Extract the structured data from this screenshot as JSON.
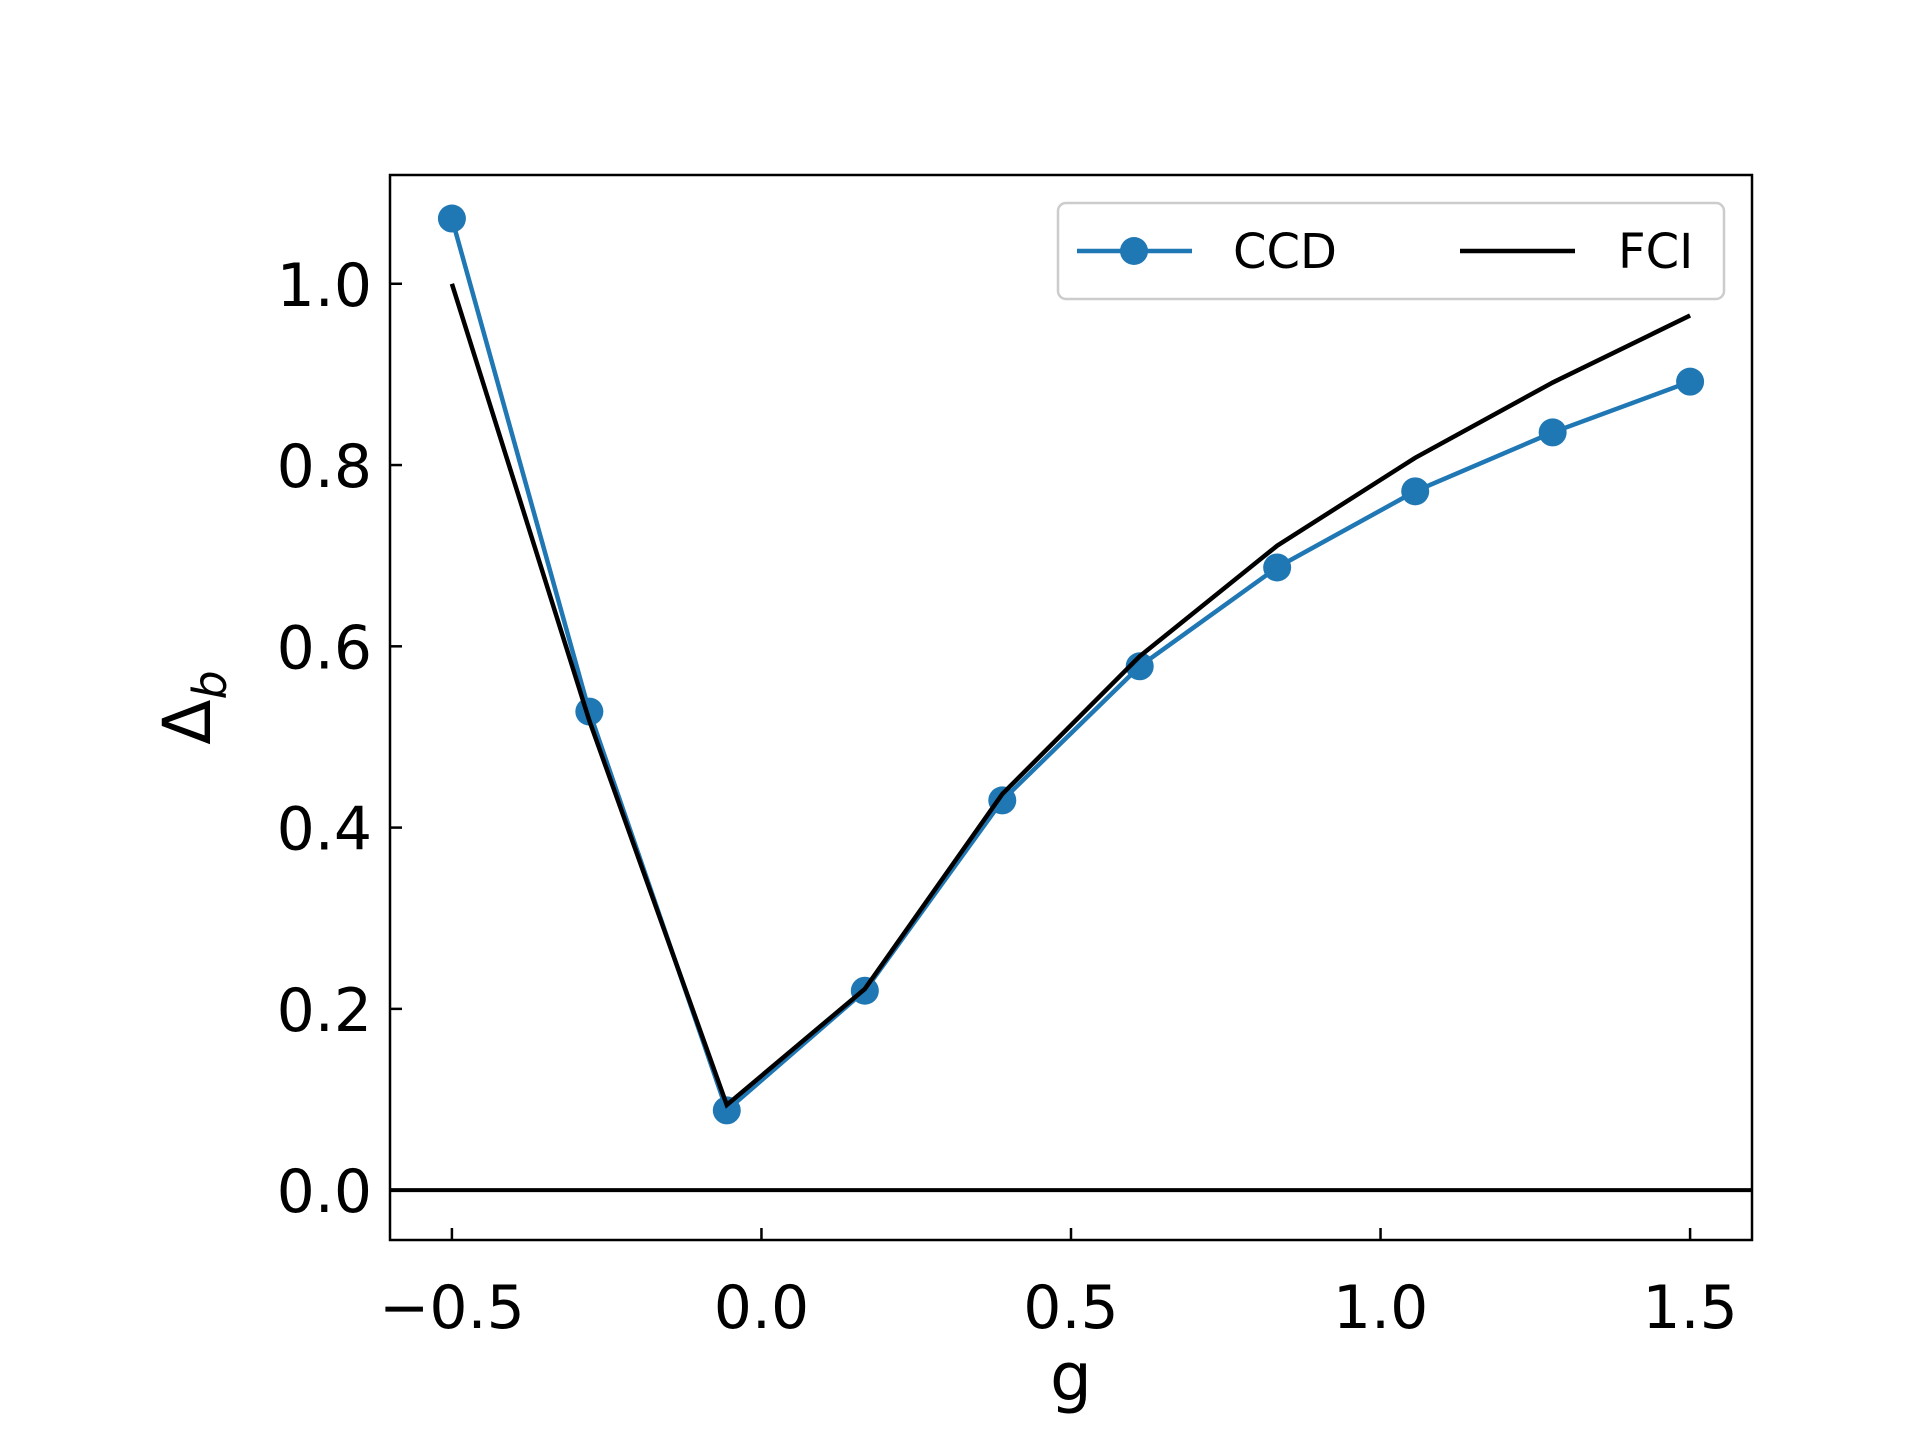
{
  "chart_data": {
    "type": "line",
    "xlabel": "g",
    "ylabel": "Δ",
    "ylabel_subscript": "b",
    "xlim": [
      -0.6,
      1.6
    ],
    "ylim": [
      -0.055,
      1.12
    ],
    "xticks": [
      -0.5,
      0.0,
      0.5,
      1.0,
      1.5
    ],
    "xtick_labels": [
      "−0.5",
      "0.0",
      "0.5",
      "1.0",
      "1.5"
    ],
    "yticks": [
      0.0,
      0.2,
      0.4,
      0.6,
      0.8,
      1.0
    ],
    "ytick_labels": [
      "0.0",
      "0.2",
      "0.4",
      "0.6",
      "0.8",
      "1.0"
    ],
    "grid": false,
    "legend_position": "top-right",
    "reference_line": {
      "y": 0.0,
      "color": "#000000"
    },
    "series": [
      {
        "name": "CCD",
        "color": "#1f77b4",
        "marker": "circle",
        "x": [
          -0.5,
          -0.278,
          -0.056,
          0.167,
          0.389,
          0.611,
          0.833,
          1.056,
          1.278,
          1.5
        ],
        "y": [
          1.072,
          0.528,
          0.088,
          0.22,
          0.43,
          0.578,
          0.687,
          0.771,
          0.836,
          0.892
        ]
      },
      {
        "name": "FCI",
        "color": "#000000",
        "marker": "none",
        "x": [
          -0.5,
          -0.278,
          -0.056,
          0.167,
          0.389,
          0.611,
          0.833,
          1.056,
          1.278,
          1.5
        ],
        "y": [
          1.0,
          0.518,
          0.094,
          0.222,
          0.437,
          0.589,
          0.711,
          0.808,
          0.891,
          0.965
        ]
      }
    ]
  }
}
